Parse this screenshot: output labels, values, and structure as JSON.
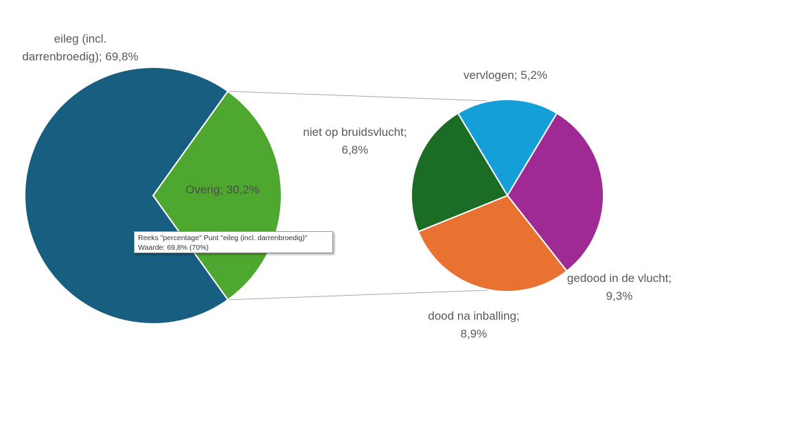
{
  "colors": {
    "background": "#ffffff",
    "main_slice_eileg": "#175e80",
    "main_slice_overig": "#4ea72e",
    "slice_vervlogen": "#149fd9",
    "slice_gedood": "#a02a93",
    "slice_dood_na_inballing": "#e97233",
    "slice_niet_op_bruidsvlucht": "#1b6c24",
    "connector": "#a6a6a6",
    "label_text": "#595959"
  },
  "chart_data": {
    "type": "pie",
    "subtype": "pie-of-pie",
    "title": "",
    "main_pie": [
      {
        "label": [
          "eileg (incl.",
          "darrenbroedig); 69,8%"
        ],
        "value": 69.8
      },
      {
        "label": [
          "Overig; 30,2%"
        ],
        "value": 30.2
      }
    ],
    "secondary_pie": [
      {
        "label": [
          "vervlogen; 5,2%"
        ],
        "value": 5.2
      },
      {
        "label": [
          "gedood in de vlucht;",
          "9,3%"
        ],
        "value": 9.3
      },
      {
        "label": [
          "dood na inballing;",
          "8,9%"
        ],
        "value": 8.9
      },
      {
        "label": [
          "niet op bruidsvlucht;",
          "6,8%"
        ],
        "value": 6.8
      }
    ],
    "legend": "none"
  },
  "tooltip": {
    "line1": "Reeks \"percentage\" Punt \"eileg (incl. darrenbroedig)\"",
    "line2": "Waarde: 69,8% (70%)"
  }
}
